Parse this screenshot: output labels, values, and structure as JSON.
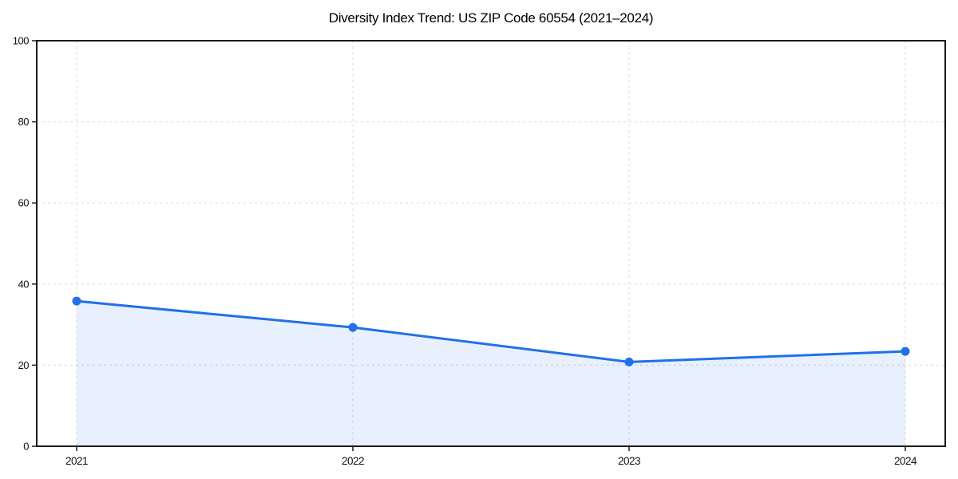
{
  "chart_data": {
    "type": "area",
    "title": "Diversity Index Trend: US ZIP Code 60554 (2021–2024)",
    "categories": [
      "2021",
      "2022",
      "2023",
      "2024"
    ],
    "series": [
      {
        "name": "Diversity Index",
        "values": [
          35.8,
          29.3,
          20.8,
          23.4
        ]
      }
    ],
    "xlabel": "",
    "ylabel": "",
    "ylim": [
      0,
      100
    ],
    "yticks": [
      0,
      20,
      40,
      60,
      80,
      100
    ],
    "grid": "dashed",
    "legend": "none",
    "colors": {
      "line": "#2170e8",
      "marker": "#2170e8",
      "fill": "#2170e8",
      "fill_opacity": 0.1,
      "grid": "#e0e0e0",
      "axis": "#1a1a1a",
      "text": "#111111",
      "background": "#ffffff"
    }
  }
}
